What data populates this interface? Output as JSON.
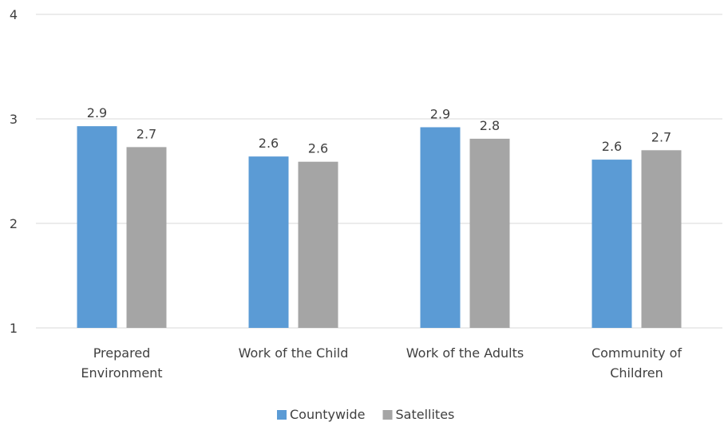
{
  "chart_data": {
    "type": "bar",
    "categories": [
      [
        "Prepared",
        "Environment"
      ],
      [
        "Work of the Child"
      ],
      [
        "Work of the Adults"
      ],
      [
        "Community of",
        "Children"
      ]
    ],
    "series": [
      {
        "name": "Countywide",
        "color": "#5b9bd5",
        "values": [
          2.93,
          2.64,
          2.92,
          2.61
        ],
        "labels": [
          "2.9",
          "2.6",
          "2.9",
          "2.6"
        ]
      },
      {
        "name": "Satellites",
        "color": "#a5a5a5",
        "values": [
          2.73,
          2.59,
          2.81,
          2.7
        ],
        "labels": [
          "2.7",
          "2.6",
          "2.8",
          "2.7"
        ]
      }
    ],
    "ylim": [
      1,
      4
    ],
    "yticks": [
      "1",
      "2",
      "3",
      "4"
    ],
    "grid": true,
    "gridColor": "#d9d9d9",
    "legend_position": "bottom"
  }
}
